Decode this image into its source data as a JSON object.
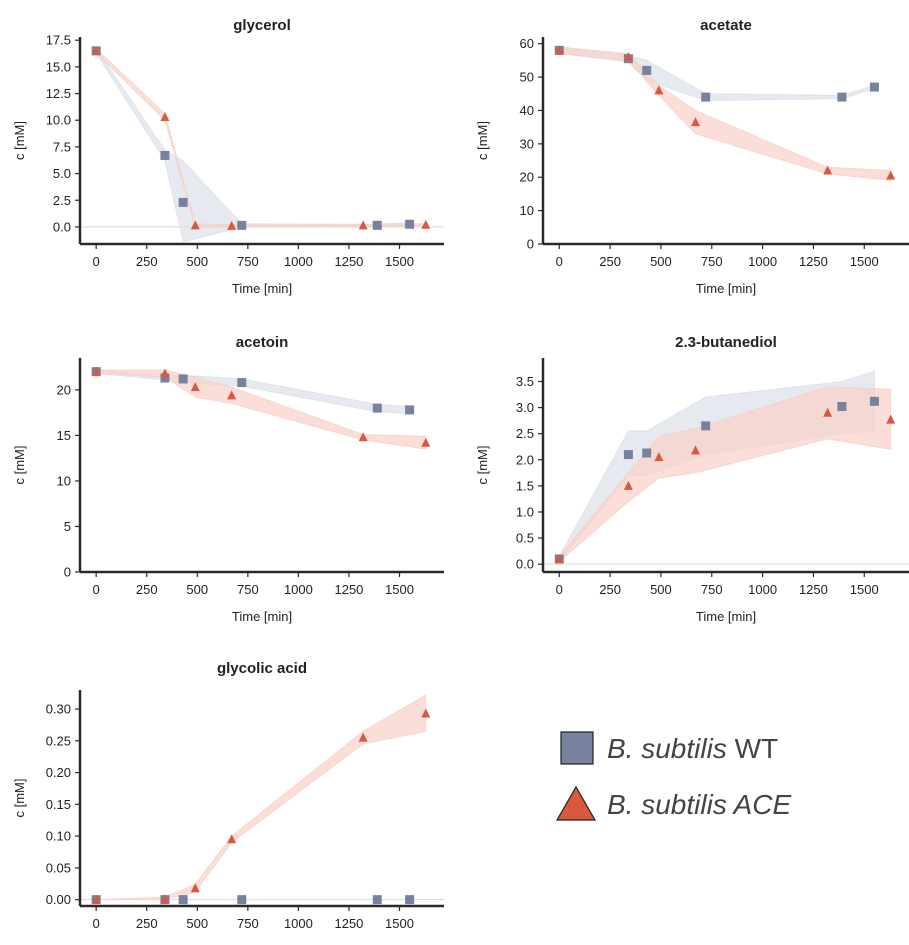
{
  "legend": {
    "wt": {
      "italic": "B. subtilis",
      "plain": " WT"
    },
    "ace": {
      "italic": "B. subtilis ACE",
      "plain": ""
    }
  },
  "colors": {
    "wt": "#76829e",
    "ace": "#d9583e",
    "wt_band": "#dde0e9",
    "ace_band": "#f8d1c8",
    "axis": "#2a2a2a"
  },
  "chart_data": [
    {
      "type": "scatter",
      "title": "glycerol",
      "xlabel": "Time [min]",
      "ylabel": "c [mM]",
      "xlim": [
        -80,
        1720
      ],
      "ylim": [
        -1.6,
        17.8
      ],
      "xticks": [
        0,
        250,
        500,
        750,
        1000,
        1250,
        1500
      ],
      "yticks": [
        0.0,
        2.5,
        5.0,
        7.5,
        10.0,
        12.5,
        15.0,
        17.5
      ],
      "ytick_labels": [
        "0.0",
        "2.5",
        "5.0",
        "7.5",
        "10.0",
        "12.5",
        "15.0",
        "17.5"
      ],
      "series": [
        {
          "name": "B. subtilis WT",
          "marker": "square",
          "x": [
            0,
            340,
            430,
            720,
            1390,
            1550
          ],
          "y": [
            16.5,
            6.7,
            2.3,
            0.15,
            0.15,
            0.25
          ],
          "band_lo": [
            16.3,
            6.2,
            -1.4,
            0.0,
            0.05,
            0.1
          ],
          "band_hi": [
            16.7,
            7.2,
            6.2,
            0.3,
            0.25,
            0.4
          ]
        },
        {
          "name": "B. subtilis ACE",
          "marker": "triangle",
          "x": [
            0,
            340,
            490,
            670,
            1320,
            1630
          ],
          "y": [
            16.5,
            10.3,
            0.15,
            0.1,
            0.15,
            0.2
          ],
          "band_lo": [
            16.3,
            10.0,
            0.0,
            0.0,
            0.05,
            0.1
          ],
          "band_hi": [
            16.7,
            10.6,
            0.3,
            0.2,
            0.25,
            0.3
          ]
        }
      ]
    },
    {
      "type": "scatter",
      "title": "acetate",
      "xlabel": "Time [min]",
      "ylabel": "c [mM]",
      "xlim": [
        -80,
        1720
      ],
      "ylim": [
        0,
        62
      ],
      "xticks": [
        0,
        250,
        500,
        750,
        1000,
        1250,
        1500
      ],
      "yticks": [
        0,
        10,
        20,
        30,
        40,
        50,
        60
      ],
      "ytick_labels": [
        "0",
        "10",
        "20",
        "30",
        "40",
        "50",
        "60"
      ],
      "series": [
        {
          "name": "B. subtilis WT",
          "marker": "square",
          "x": [
            0,
            340,
            430,
            720,
            1390,
            1550
          ],
          "y": [
            58,
            55.5,
            52,
            44,
            44,
            47
          ],
          "band_lo": [
            57,
            54.5,
            49,
            43,
            43.5,
            46.5
          ],
          "band_hi": [
            59,
            56.5,
            55,
            45,
            44.5,
            47.5
          ]
        },
        {
          "name": "B. subtilis ACE",
          "marker": "triangle",
          "x": [
            0,
            340,
            490,
            670,
            1320,
            1630
          ],
          "y": [
            58,
            56,
            46,
            36.5,
            22,
            20.5
          ],
          "band_lo": [
            57,
            55,
            44.5,
            33,
            21,
            19
          ],
          "band_hi": [
            59,
            57,
            47.5,
            40,
            23,
            22
          ]
        }
      ]
    },
    {
      "type": "scatter",
      "title": "acetoin",
      "xlabel": "Time [min]",
      "ylabel": "c [mM]",
      "xlim": [
        -80,
        1720
      ],
      "ylim": [
        0,
        23.5
      ],
      "xticks": [
        0,
        250,
        500,
        750,
        1000,
        1250,
        1500
      ],
      "yticks": [
        0,
        5,
        10,
        15,
        20
      ],
      "ytick_labels": [
        "0",
        "5",
        "10",
        "15",
        "20"
      ],
      "series": [
        {
          "name": "B. subtilis WT",
          "marker": "square",
          "x": [
            0,
            340,
            430,
            720,
            1390,
            1550
          ],
          "y": [
            22,
            21.3,
            21.2,
            20.8,
            18,
            17.8
          ],
          "band_lo": [
            21.8,
            21.1,
            20.8,
            20.4,
            17.6,
            17.4
          ],
          "band_hi": [
            22.2,
            21.5,
            21.6,
            21.2,
            18.4,
            18.2
          ]
        },
        {
          "name": "B. subtilis ACE",
          "marker": "triangle",
          "x": [
            0,
            340,
            490,
            670,
            1320,
            1630
          ],
          "y": [
            22,
            21.8,
            20.3,
            19.4,
            14.8,
            14.2
          ],
          "band_lo": [
            21.8,
            21.4,
            19.2,
            18.5,
            14.5,
            13.5
          ],
          "band_hi": [
            22.2,
            22.2,
            21.4,
            20.3,
            15.1,
            14.9
          ]
        }
      ]
    },
    {
      "type": "scatter",
      "title": "2.3-butanediol",
      "xlabel": "Time [min]",
      "ylabel": "c [mM]",
      "xlim": [
        -80,
        1720
      ],
      "ylim": [
        -0.15,
        3.95
      ],
      "xticks": [
        0,
        250,
        500,
        750,
        1000,
        1250,
        1500
      ],
      "yticks": [
        0.0,
        0.5,
        1.0,
        1.5,
        2.0,
        2.5,
        3.0,
        3.5
      ],
      "ytick_labels": [
        "0.0",
        "0.5",
        "1.0",
        "1.5",
        "2.0",
        "2.5",
        "3.0",
        "3.5"
      ],
      "series": [
        {
          "name": "B. subtilis WT",
          "marker": "square",
          "x": [
            0,
            340,
            430,
            720,
            1390,
            1550
          ],
          "y": [
            0.1,
            2.1,
            2.13,
            2.65,
            3.02,
            3.12
          ],
          "band_lo": [
            0.05,
            1.7,
            1.7,
            2.1,
            2.5,
            2.55
          ],
          "band_hi": [
            0.15,
            2.55,
            2.55,
            3.2,
            3.5,
            3.7
          ]
        },
        {
          "name": "B. subtilis ACE",
          "marker": "triangle",
          "x": [
            0,
            340,
            490,
            670,
            1320,
            1630
          ],
          "y": [
            0.1,
            1.5,
            2.05,
            2.18,
            2.9,
            2.77
          ],
          "band_lo": [
            0.05,
            1.2,
            1.65,
            1.75,
            2.4,
            2.2
          ],
          "band_hi": [
            0.15,
            1.75,
            2.45,
            2.6,
            3.4,
            3.35
          ]
        }
      ]
    },
    {
      "type": "scatter",
      "title": "glycolic acid",
      "xlabel": "Time [min]",
      "ylabel": "c [mM]",
      "xlim": [
        -80,
        1720
      ],
      "ylim": [
        -0.01,
        0.33
      ],
      "xticks": [
        0,
        250,
        500,
        750,
        1000,
        1250,
        1500
      ],
      "yticks": [
        0.0,
        0.05,
        0.1,
        0.15,
        0.2,
        0.25,
        0.3
      ],
      "ytick_labels": [
        "0.00",
        "0.05",
        "0.10",
        "0.15",
        "0.20",
        "0.25",
        "0.30"
      ],
      "series": [
        {
          "name": "B. subtilis WT",
          "marker": "square",
          "x": [
            0,
            340,
            430,
            720,
            1390,
            1550
          ],
          "y": [
            0,
            0,
            0,
            0,
            0,
            0
          ],
          "band_lo": [
            0,
            0,
            0,
            0,
            0,
            0
          ],
          "band_hi": [
            0,
            0,
            0,
            0,
            0,
            0
          ]
        },
        {
          "name": "B. subtilis ACE",
          "marker": "triangle",
          "x": [
            0,
            340,
            490,
            670,
            1320,
            1630
          ],
          "y": [
            0,
            0.001,
            0.018,
            0.095,
            0.255,
            0.293
          ],
          "band_lo": [
            0,
            0,
            0.012,
            0.09,
            0.245,
            0.265
          ],
          "band_hi": [
            0,
            0.004,
            0.024,
            0.1,
            0.265,
            0.322
          ]
        }
      ]
    }
  ]
}
